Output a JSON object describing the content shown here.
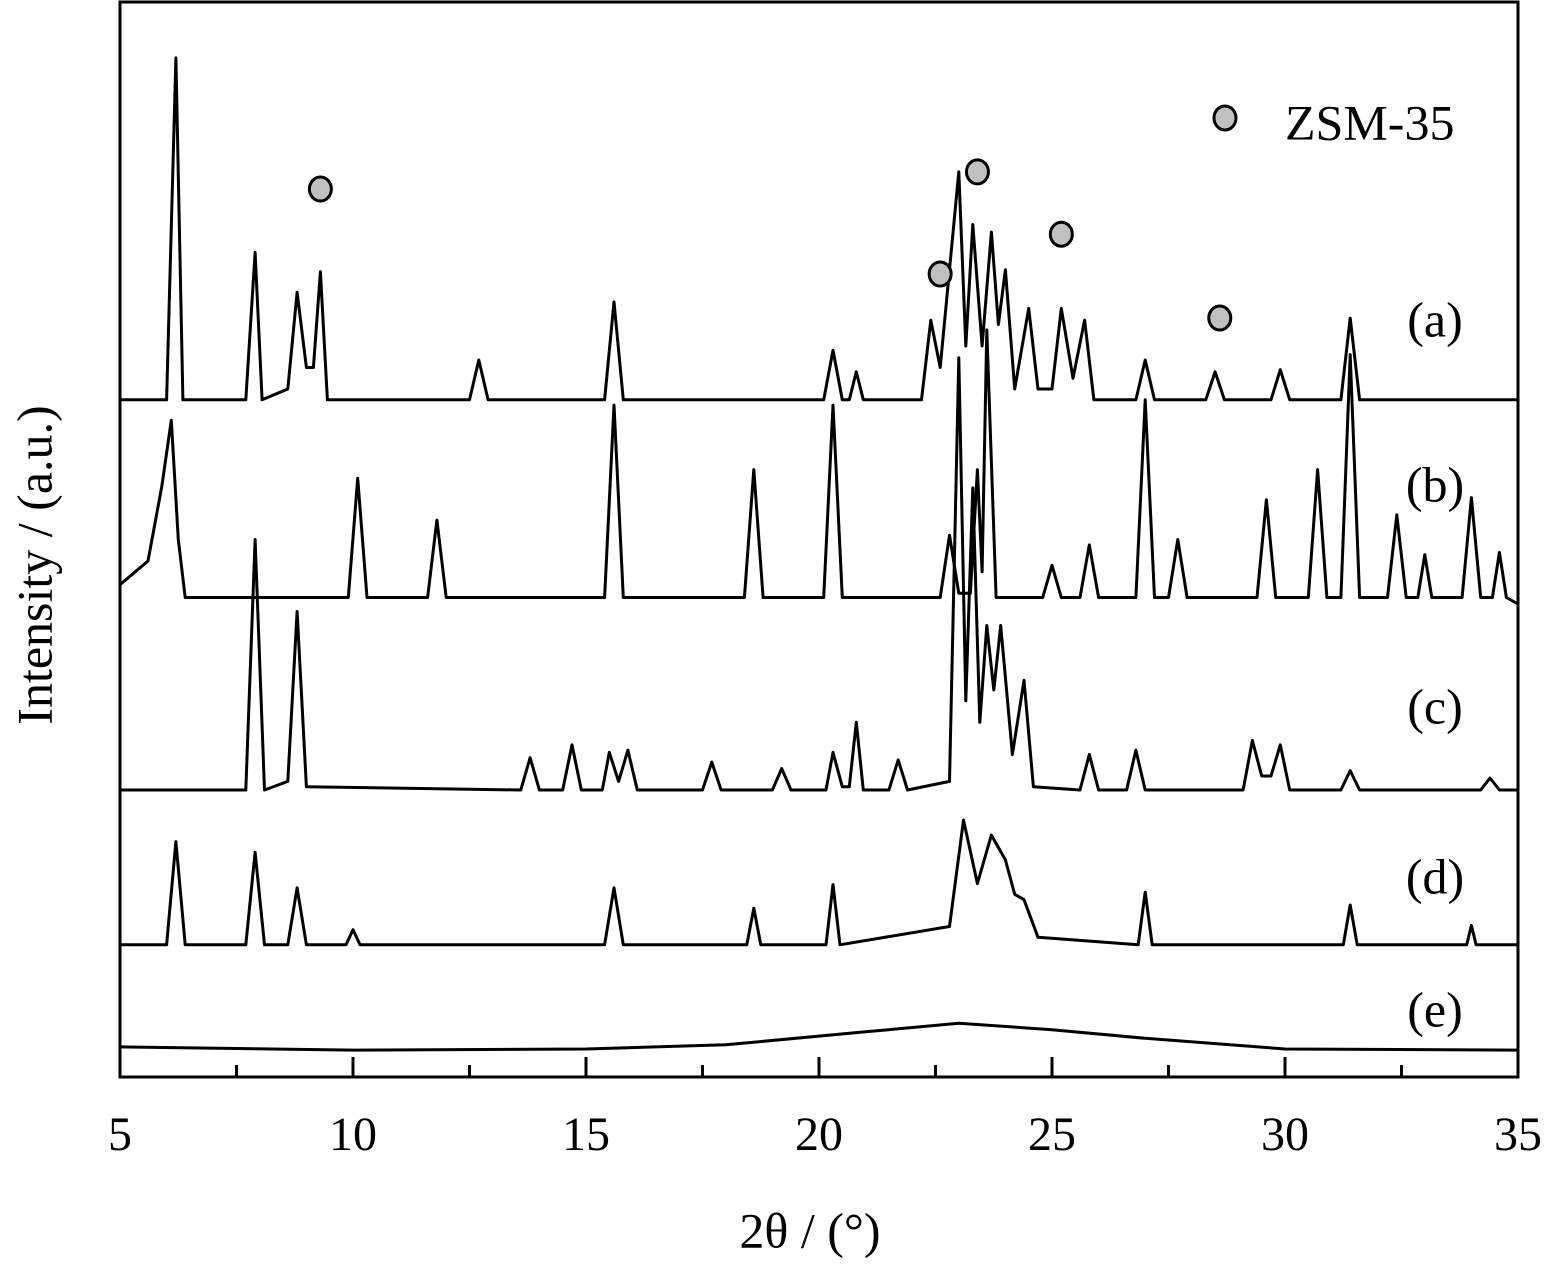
{
  "chart_data": {
    "type": "line",
    "xlabel": "2θ / (°)",
    "ylabel": "Intensity / (a.u.)",
    "xlim": [
      5,
      35
    ],
    "xticks": [
      5,
      10,
      15,
      20,
      25,
      30,
      35
    ],
    "xminorticks": [
      7.5,
      12.5,
      17.5,
      22.5,
      27.5,
      32.5
    ],
    "ylim": [
      0,
      100
    ],
    "color": "#000000",
    "series": [
      {
        "name": "(a)",
        "color": "#000000",
        "x": [
          5,
          6.0,
          6.2,
          6.35,
          7.7,
          7.9,
          8.05,
          8.6,
          8.8,
          9.0,
          9.15,
          9.3,
          9.45,
          12.5,
          12.7,
          12.9,
          15.4,
          15.6,
          15.8,
          20.1,
          20.3,
          20.5,
          20.65,
          20.8,
          20.95,
          22.2,
          22.4,
          22.6,
          23.0,
          23.15,
          23.3,
          23.5,
          23.7,
          23.85,
          24.0,
          24.2,
          24.5,
          24.7,
          25.0,
          25.2,
          25.45,
          25.7,
          25.9,
          26.8,
          27.0,
          27.2,
          28.3,
          28.5,
          28.7,
          29.7,
          29.9,
          30.1,
          31.2,
          31.4,
          31.6,
          35
        ],
        "values": [
          63,
          63,
          94.8,
          63,
          63,
          76.7,
          63,
          64,
          73,
          66,
          66,
          74.9,
          63,
          63,
          66.7,
          63,
          63,
          72.1,
          63,
          63,
          67.6,
          63,
          63,
          65.6,
          63,
          63,
          70.4,
          66,
          84.2,
          68,
          79.3,
          68,
          78.6,
          70,
          75.1,
          64,
          71.5,
          64,
          64,
          71.5,
          65,
          70.4,
          63,
          63,
          66.7,
          63,
          63,
          65.6,
          63,
          63,
          65.8,
          63,
          63,
          70.6,
          63,
          63
        ]
      },
      {
        "name": "(b)",
        "color": "#000000",
        "x": [
          5,
          5.6,
          5.9,
          6.1,
          6.25,
          6.4,
          9.9,
          10.1,
          10.3,
          11.6,
          11.8,
          12.0,
          15.4,
          15.6,
          15.8,
          18.4,
          18.6,
          18.8,
          20.1,
          20.3,
          20.5,
          22.6,
          22.8,
          23.0,
          23.25,
          23.4,
          23.5,
          23.6,
          23.8,
          24.8,
          25.0,
          25.2,
          25.6,
          25.8,
          26.0,
          26.8,
          27.0,
          27.2,
          27.5,
          27.7,
          27.9,
          29.4,
          29.6,
          29.8,
          30.5,
          30.7,
          30.9,
          31.2,
          31.4,
          31.6,
          32.2,
          32.4,
          32.6,
          32.85,
          33.0,
          33.15,
          33.8,
          34.0,
          34.2,
          34.45,
          34.6,
          34.75,
          35
        ],
        "values": [
          45.8,
          48,
          55,
          61.1,
          50,
          44.6,
          44.6,
          55.7,
          44.6,
          44.6,
          51.8,
          44.6,
          44.6,
          62.5,
          44.6,
          44.6,
          56.5,
          44.6,
          44.6,
          62.5,
          44.6,
          44.6,
          50.4,
          45,
          45,
          56.5,
          47,
          69.5,
          44.6,
          44.6,
          47.6,
          44.6,
          44.6,
          49.5,
          44.6,
          44.6,
          63,
          44.6,
          44.6,
          50,
          44.6,
          44.6,
          53.7,
          44.6,
          44.6,
          56.5,
          44.6,
          44.6,
          67.2,
          44.6,
          44.6,
          52.3,
          44.6,
          44.6,
          48.6,
          44.6,
          44.6,
          53.9,
          44.6,
          44.6,
          48.8,
          44.6,
          44
        ]
      },
      {
        "name": "(c)",
        "color": "#000000",
        "x": [
          5,
          7.7,
          7.9,
          8.1,
          8.6,
          8.8,
          9.0,
          13.6,
          13.8,
          14.0,
          14.5,
          14.7,
          14.9,
          15.35,
          15.5,
          15.7,
          15.9,
          16.1,
          17.5,
          17.7,
          17.9,
          19.0,
          19.2,
          19.4,
          20.15,
          20.3,
          20.5,
          20.65,
          20.8,
          20.95,
          21.5,
          21.7,
          21.9,
          22.8,
          23.0,
          23.15,
          23.3,
          23.45,
          23.6,
          23.75,
          23.9,
          24.15,
          24.4,
          24.6,
          25.6,
          25.8,
          26.0,
          26.6,
          26.8,
          27.0,
          29.1,
          29.3,
          29.5,
          29.7,
          29.9,
          30.1,
          31.2,
          31.4,
          31.6,
          34.2,
          34.4,
          34.6,
          35
        ],
        "values": [
          26.7,
          26.7,
          50,
          26.7,
          27.5,
          43.3,
          27,
          26.7,
          29.7,
          26.7,
          26.7,
          30.9,
          26.7,
          26.7,
          30.2,
          27.5,
          30.4,
          26.7,
          26.7,
          29.3,
          26.7,
          26.7,
          28.7,
          26.7,
          26.7,
          30.2,
          27,
          27,
          33,
          26.7,
          26.7,
          29.5,
          26.7,
          27.5,
          66.9,
          35,
          54.8,
          33,
          42,
          36,
          42,
          30,
          36.9,
          27,
          26.7,
          30,
          26.7,
          26.7,
          30.4,
          26.7,
          26.7,
          31.3,
          28,
          28,
          30.9,
          26.7,
          26.7,
          28.5,
          26.7,
          26.7,
          27.8,
          26.7,
          26.7
        ]
      },
      {
        "name": "(d)",
        "color": "#000000",
        "x": [
          5,
          6.0,
          6.2,
          6.4,
          7.7,
          7.9,
          8.1,
          8.6,
          8.8,
          9.0,
          9.85,
          10.0,
          10.15,
          15.4,
          15.6,
          15.8,
          18.45,
          18.6,
          18.75,
          20.15,
          20.3,
          20.45,
          22.8,
          23.1,
          23.4,
          23.7,
          24.0,
          24.2,
          24.4,
          24.7,
          26.85,
          27.0,
          27.15,
          31.25,
          31.4,
          31.55,
          33.9,
          34.0,
          34.1,
          35
        ],
        "values": [
          12.3,
          12.3,
          21.9,
          12.3,
          12.3,
          20.9,
          12.3,
          12.3,
          17.6,
          12.3,
          12.3,
          13.7,
          12.3,
          12.3,
          17.6,
          12.3,
          12.3,
          15.7,
          12.3,
          12.3,
          17.9,
          12.3,
          14,
          23.9,
          18,
          22.5,
          20.2,
          17,
          16.5,
          13,
          12.3,
          17.2,
          12.3,
          12.3,
          16,
          12.3,
          12.3,
          14.1,
          12.3,
          12.3
        ]
      },
      {
        "name": "(e)",
        "color": "#000000",
        "x": [
          5,
          10,
          15,
          18,
          21,
          23,
          25,
          27,
          30,
          35
        ],
        "values": [
          2.8,
          2.5,
          2.6,
          3,
          4.2,
          5,
          4.4,
          3.6,
          2.6,
          2.5
        ]
      }
    ],
    "markers": {
      "name": "ZSM-35",
      "color": "#c0c0c0",
      "x": [
        9.3,
        22.6,
        23.4,
        25.2,
        28.6
      ],
      "values": [
        82.6,
        74.7,
        84.2,
        78.4,
        70.6
      ]
    }
  }
}
